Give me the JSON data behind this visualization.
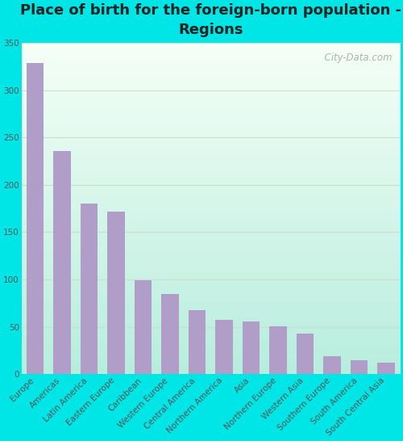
{
  "title": "Place of birth for the foreign-born population -\nRegions",
  "categories": [
    "Europe",
    "Americas",
    "Latin America",
    "Eastern Europe",
    "Caribbean",
    "Western Europe",
    "Central America",
    "Northern America",
    "Asia",
    "Northern Europe",
    "Western Asia",
    "Southern Europe",
    "South America",
    "South Central Asia"
  ],
  "values": [
    329,
    236,
    180,
    172,
    99,
    85,
    68,
    57,
    56,
    51,
    43,
    19,
    15,
    12
  ],
  "bar_color": "#b09ec9",
  "background_outer": "#00e5e5",
  "bg_top_right": "#f8fffa",
  "bg_bottom_left": "#a8e8d8",
  "ylim": [
    0,
    350
  ],
  "yticks": [
    0,
    50,
    100,
    150,
    200,
    250,
    300,
    350
  ],
  "title_fontsize": 13,
  "tick_fontsize": 7.5,
  "watermark": "  City-Data.com",
  "grid_color": "#ccddcc",
  "bar_width": 0.65
}
